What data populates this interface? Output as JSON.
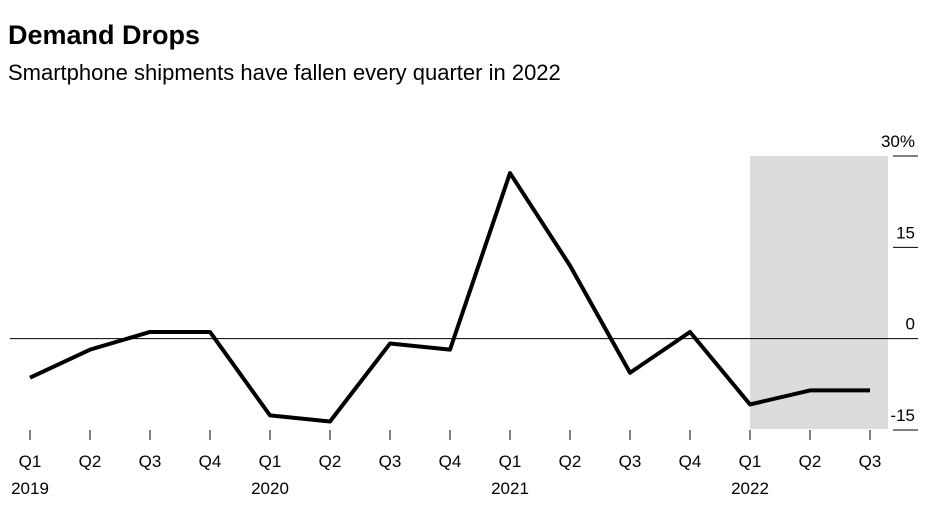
{
  "chart_data": {
    "type": "line",
    "title": "Demand Drops",
    "subtitle": "Smartphone shipments have fallen every quarter in 2022",
    "categories": [
      "Q1",
      "Q2",
      "Q3",
      "Q4",
      "Q1",
      "Q2",
      "Q3",
      "Q4",
      "Q1",
      "Q2",
      "Q3",
      "Q4",
      "Q1",
      "Q2",
      "Q3"
    ],
    "category_groups": [
      "2019",
      null,
      null,
      null,
      "2020",
      null,
      null,
      null,
      "2021",
      null,
      null,
      null,
      "2022",
      null,
      null
    ],
    "series": [
      {
        "name": "Smartphone shipments",
        "color": "#000000",
        "values": [
          -6.4,
          -1.8,
          1.1,
          1.1,
          -12.6,
          -13.6,
          -0.8,
          -1.8,
          27.2,
          12,
          -5.6,
          1.1,
          -10.8,
          -8.5,
          -8.5
        ]
      }
    ],
    "ylim": [
      -15,
      30
    ],
    "yticks": [
      -15,
      0,
      15,
      {
        "value": 30,
        "label": "30%"
      }
    ]
  }
}
